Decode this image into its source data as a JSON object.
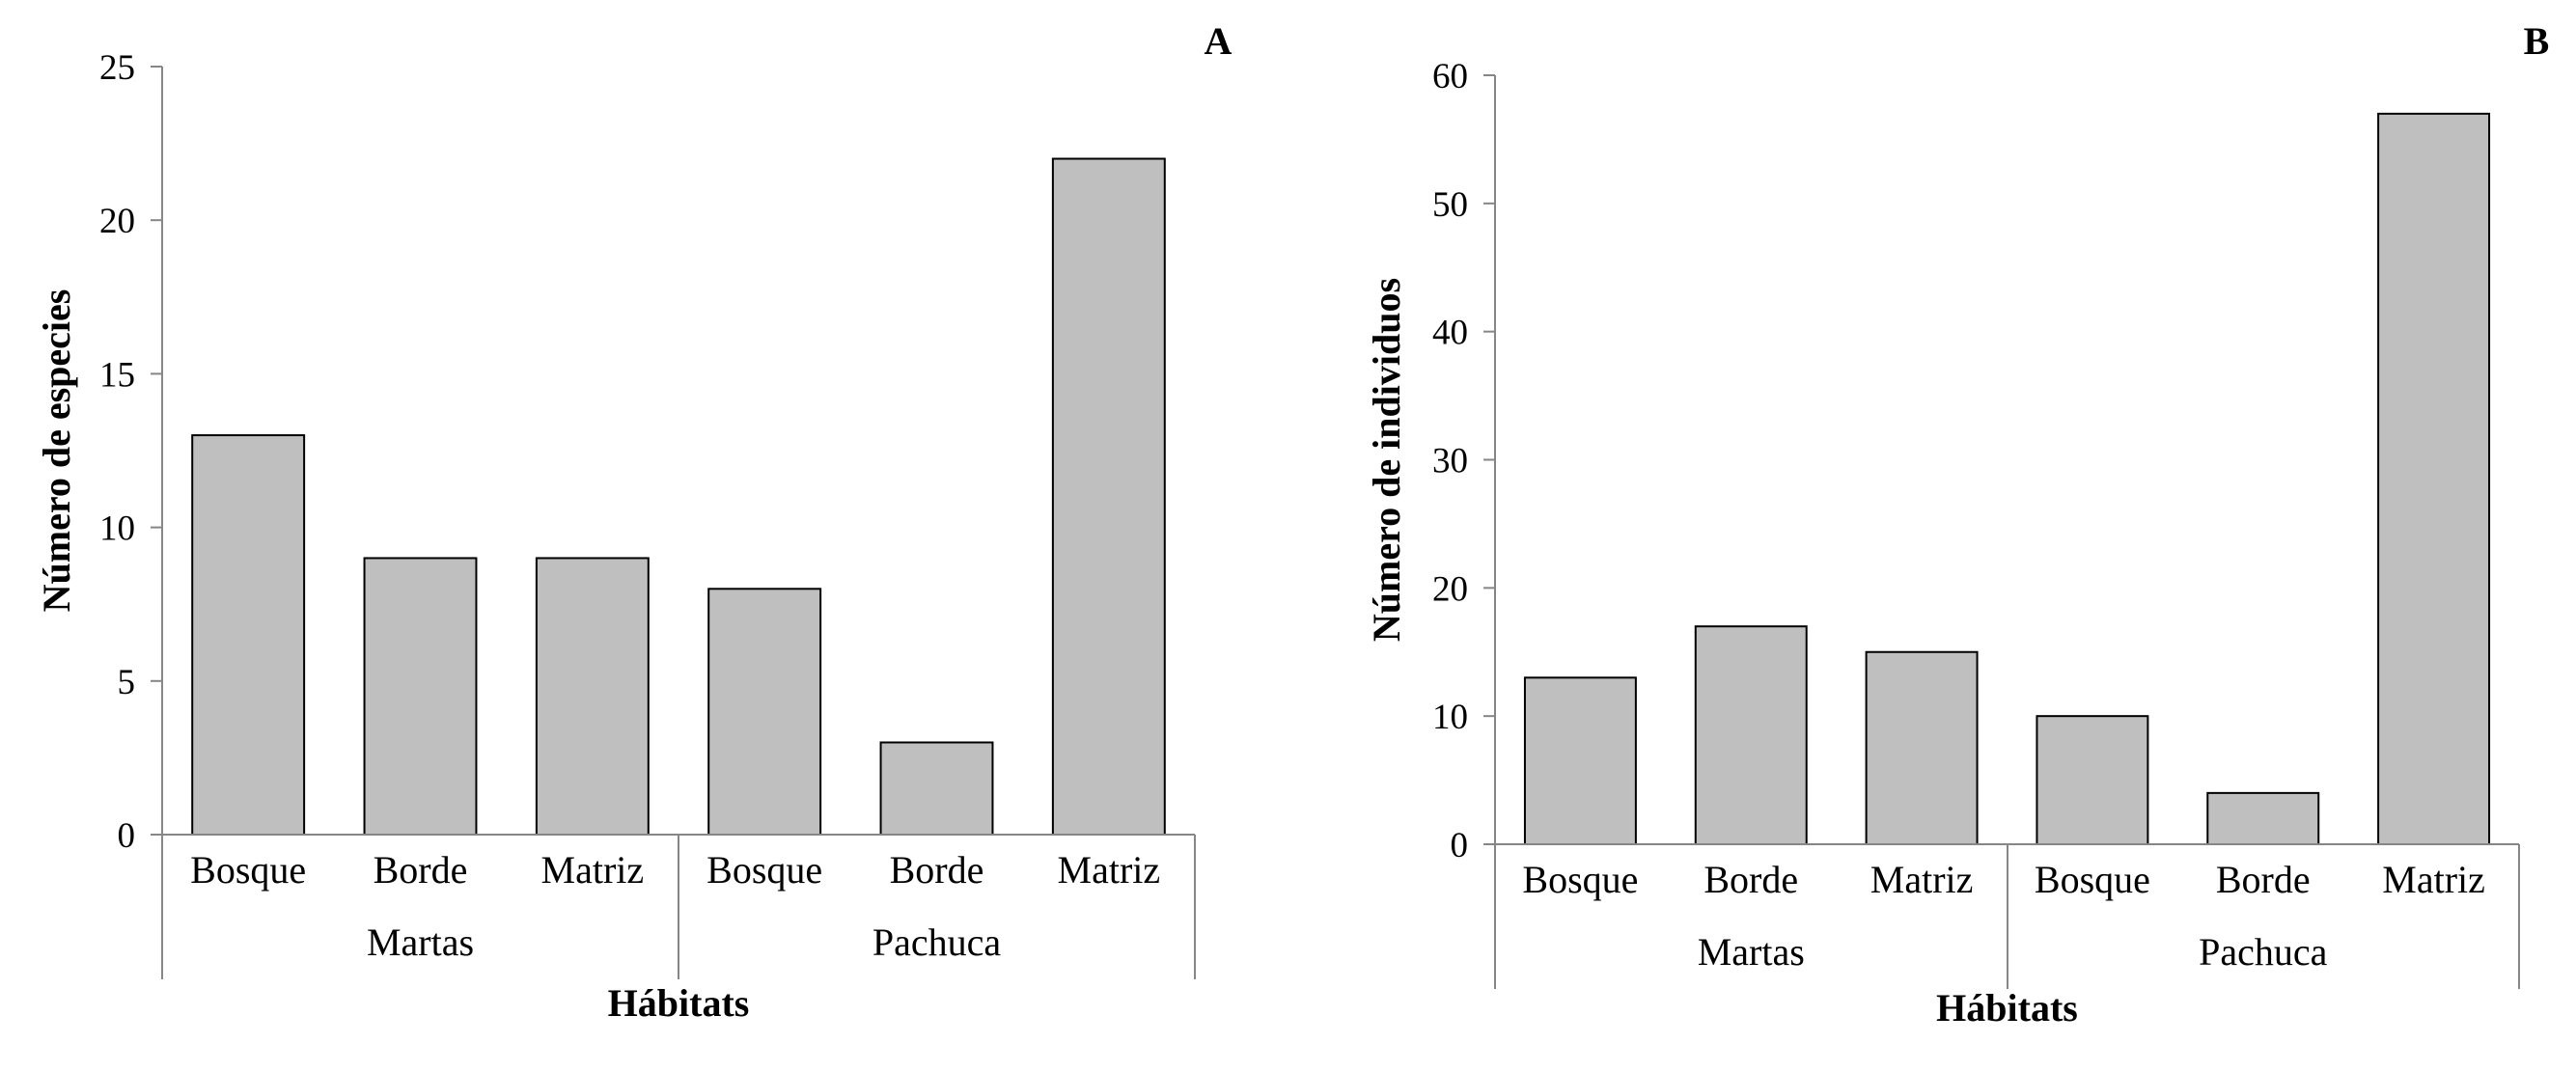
{
  "chart_data": [
    {
      "type": "bar",
      "panel_label": "A",
      "groups": [
        "Martas",
        "Pachuca"
      ],
      "categories": [
        "Bosque",
        "Borde",
        "Matriz",
        "Bosque",
        "Borde",
        "Matriz"
      ],
      "values": [
        13,
        9,
        9,
        8,
        3,
        22
      ],
      "ylabel": "Número de especies",
      "xlabel": "Hábitats",
      "ylim": [
        0,
        25
      ],
      "yticks": [
        "0",
        "5",
        "10",
        "15",
        "20",
        "25"
      ],
      "grid": false,
      "bar_color": "#bfbfbf",
      "bar_edge_color": "#000000"
    },
    {
      "type": "bar",
      "panel_label": "B",
      "groups": [
        "Martas",
        "Pachuca"
      ],
      "categories": [
        "Bosque",
        "Borde",
        "Matriz",
        "Bosque",
        "Borde",
        "Matriz"
      ],
      "values": [
        13,
        17,
        15,
        10,
        4,
        57
      ],
      "ylabel": "Número de individuos",
      "xlabel": "Hábitats",
      "ylim": [
        0,
        60
      ],
      "yticks": [
        "0",
        "10",
        "20",
        "30",
        "40",
        "50",
        "60"
      ],
      "grid": false,
      "bar_color": "#bfbfbf",
      "bar_edge_color": "#000000"
    }
  ]
}
